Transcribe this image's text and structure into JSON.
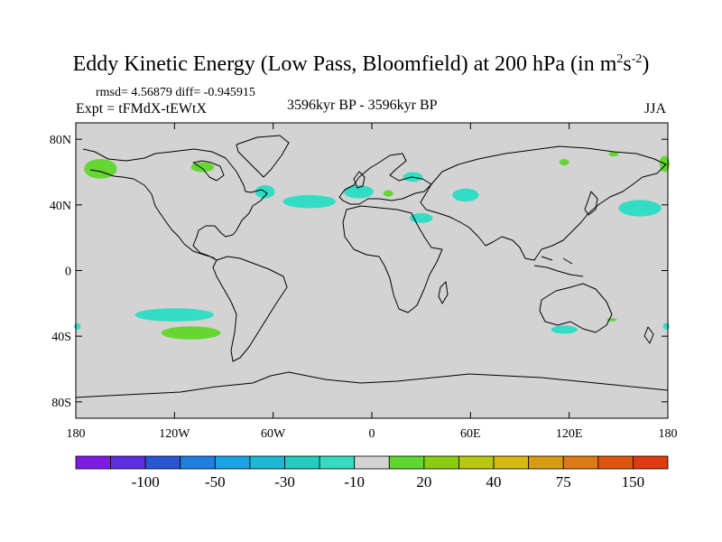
{
  "title": {
    "main": "Eddy Kinetic Energy (Low Pass, Bloomfield) at 200 hPa (in m",
    "sup1": "2",
    "mid": "s",
    "sup2": "-2",
    "end": ")"
  },
  "stats": {
    "rmsd_text": "rmsd= 4.56879 diff= -0.945915"
  },
  "experiment": "Expt = tFMdX-tEWtX",
  "period": "3596kyr BP - 3596kyr BP",
  "season": "JJA",
  "colors": {
    "background": "#d3d3d3",
    "coast": "#000000",
    "neg_small": "#33dcc4",
    "pos_small": "#66d633"
  },
  "map": {
    "projection": "cylindrical-equidistant",
    "lon_range": [
      -180,
      180
    ],
    "lat_range": [
      -90,
      90
    ],
    "lat_ticks": [
      {
        "value": 80,
        "label": "80N"
      },
      {
        "value": 40,
        "label": "40N"
      },
      {
        "value": 0,
        "label": "0"
      },
      {
        "value": -40,
        "label": "40S"
      },
      {
        "value": -80,
        "label": "80S"
      }
    ],
    "lon_ticks": [
      {
        "value": -180,
        "label": "180"
      },
      {
        "value": -120,
        "label": "120W"
      },
      {
        "value": -60,
        "label": "60W"
      },
      {
        "value": 0,
        "label": "0"
      },
      {
        "value": 60,
        "label": "60E"
      },
      {
        "value": 120,
        "label": "120E"
      },
      {
        "value": 180,
        "label": "180"
      }
    ],
    "anomaly_regions": [
      {
        "name": "north-pacific-high",
        "lon": -165,
        "lat": 62,
        "rlon": 10,
        "rlat": 6,
        "class": "pos_small"
      },
      {
        "name": "canada-north",
        "lon": -103,
        "lat": 63,
        "rlon": 7,
        "rlat": 3,
        "class": "pos_small"
      },
      {
        "name": "hudson-bay",
        "lon": -65,
        "lat": 48,
        "rlon": 6,
        "rlat": 4,
        "class": "neg_small"
      },
      {
        "name": "north-atlantic",
        "lon": -38,
        "lat": 42,
        "rlon": 16,
        "rlat": 4,
        "class": "neg_small"
      },
      {
        "name": "western-europe",
        "lon": -8,
        "lat": 48,
        "rlon": 9,
        "rlat": 4,
        "class": "neg_small"
      },
      {
        "name": "central-europe",
        "lon": 10,
        "lat": 47,
        "rlon": 3,
        "rlat": 2,
        "class": "pos_small"
      },
      {
        "name": "scandinavia",
        "lon": 25,
        "lat": 57,
        "rlon": 6,
        "rlat": 3,
        "class": "neg_small"
      },
      {
        "name": "mediterranean",
        "lon": 30,
        "lat": 32,
        "rlon": 7,
        "rlat": 3,
        "class": "neg_small"
      },
      {
        "name": "caspian",
        "lon": 57,
        "lat": 46,
        "rlon": 8,
        "rlat": 4,
        "class": "neg_small"
      },
      {
        "name": "siberia-north",
        "lon": 117,
        "lat": 66,
        "rlon": 3,
        "rlat": 2,
        "class": "pos_small"
      },
      {
        "name": "arctic-east",
        "lon": 147,
        "lat": 71,
        "rlon": 3,
        "rlat": 1.5,
        "class": "pos_small"
      },
      {
        "name": "east-siberia",
        "lon": 178,
        "lat": 65,
        "rlon": 3,
        "rlat": 5,
        "class": "pos_small"
      },
      {
        "name": "north-pacific-west",
        "lon": 163,
        "lat": 38,
        "rlon": 13,
        "rlat": 5,
        "class": "neg_small"
      },
      {
        "name": "south-pacific",
        "lon": -120,
        "lat": -27,
        "rlon": 24,
        "rlat": 4,
        "class": "neg_small"
      },
      {
        "name": "south-pacific-lower",
        "lon": -110,
        "lat": -38,
        "rlon": 18,
        "rlat": 4,
        "class": "pos_small"
      },
      {
        "name": "south-pacific-west",
        "lon": -179,
        "lat": -34,
        "rlon": 2,
        "rlat": 2,
        "class": "neg_small"
      },
      {
        "name": "south-of-australia",
        "lon": 117,
        "lat": -36,
        "rlon": 8,
        "rlat": 2.5,
        "class": "neg_small"
      },
      {
        "name": "east-australia",
        "lon": 146,
        "lat": -30,
        "rlon": 3,
        "rlat": 1,
        "class": "pos_small"
      },
      {
        "name": "tasman-east",
        "lon": 179,
        "lat": -34,
        "rlon": 2,
        "rlat": 2,
        "class": "neg_small"
      }
    ]
  },
  "colorbar": {
    "colors": [
      "#7d1be6",
      "#5a2fe0",
      "#2a56d6",
      "#1e7fdf",
      "#1aa3e6",
      "#1cb8d4",
      "#20cdbf",
      "#35dcc0",
      "#d3d3d3",
      "#5fd72f",
      "#8acc12",
      "#b7c712",
      "#d6ba12",
      "#d99b12",
      "#df7a12",
      "#e0560f",
      "#df3a10"
    ],
    "labels": [
      {
        "after_box": 2,
        "text": "-100"
      },
      {
        "after_box": 4,
        "text": "-50"
      },
      {
        "after_box": 6,
        "text": "-30"
      },
      {
        "after_box": 8,
        "text": "-10"
      },
      {
        "after_box": 10,
        "text": "20"
      },
      {
        "after_box": 12,
        "text": "40"
      },
      {
        "after_box": 14,
        "text": "75"
      },
      {
        "after_box": 16,
        "text": "150"
      }
    ]
  }
}
